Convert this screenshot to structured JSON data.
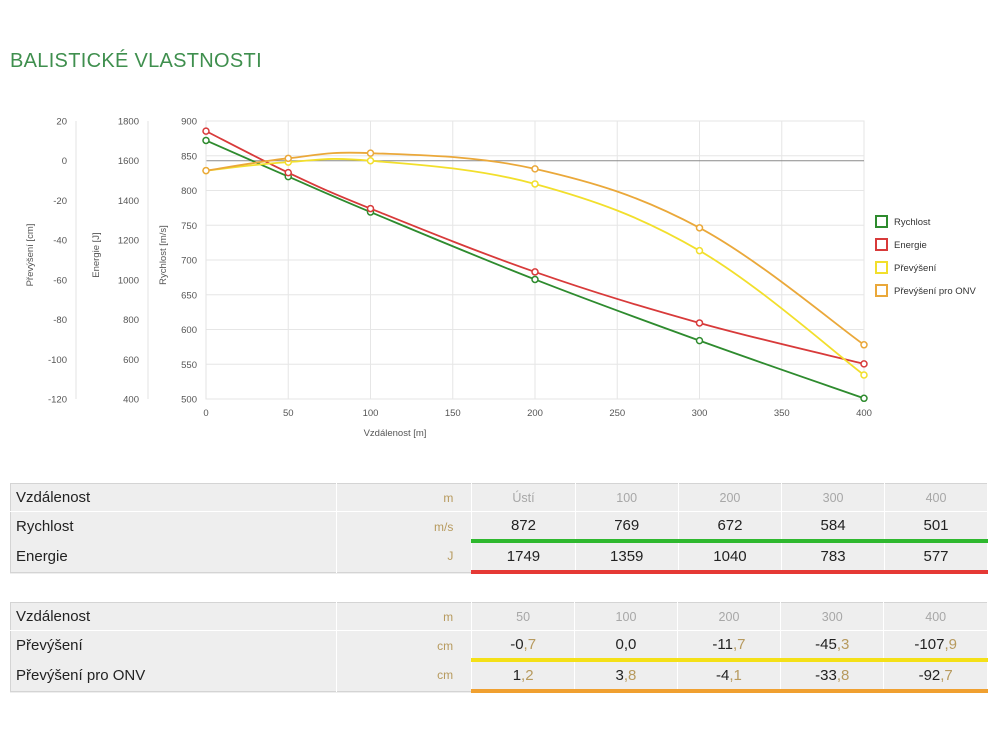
{
  "title": "BALISTICKÉ VLASTNOSTI",
  "chart_data": {
    "type": "line",
    "xlabel": "Vzdálenost [m]",
    "xlim": [
      0,
      400
    ],
    "xticks": [
      0,
      50,
      100,
      150,
      200,
      250,
      300,
      350,
      400
    ],
    "axes": [
      {
        "name": "Převýšení [cm]",
        "ylim": [
          -120,
          20
        ],
        "ticks": [
          20,
          0,
          -20,
          -40,
          -60,
          -80,
          -100,
          -120
        ]
      },
      {
        "name": "Energie [J]",
        "ylim": [
          400,
          1800
        ],
        "ticks": [
          1800,
          1600,
          1400,
          1200,
          1000,
          800,
          600,
          400
        ]
      },
      {
        "name": "Rychlost [m/s]",
        "ylim": [
          500,
          900
        ],
        "ticks": [
          900,
          850,
          800,
          750,
          700,
          650,
          600,
          550,
          500
        ]
      }
    ],
    "series": [
      {
        "name": "Rychlost",
        "axis": 2,
        "color": "#2e8b2e",
        "x": [
          0,
          50,
          100,
          200,
          300,
          400
        ],
        "values": [
          872,
          820,
          769,
          672,
          584,
          501
        ]
      },
      {
        "name": "Energie",
        "axis": 1,
        "color": "#d83a3a",
        "x": [
          0,
          50,
          100,
          200,
          300,
          400
        ],
        "values": [
          1749,
          1540,
          1359,
          1040,
          783,
          577
        ]
      },
      {
        "name": "Převýšení",
        "axis": 0,
        "color": "#f2df2c",
        "x": [
          0,
          50,
          100,
          200,
          300,
          400
        ],
        "values": [
          -5,
          -0.7,
          0.0,
          -11.7,
          -45.3,
          -107.9
        ]
      },
      {
        "name": "Převýšení pro ONV",
        "axis": 0,
        "color": "#eaa83a",
        "x": [
          0,
          50,
          100,
          200,
          300,
          400
        ],
        "values": [
          -5,
          1.2,
          3.8,
          -4.1,
          -33.8,
          -92.7
        ]
      }
    ]
  },
  "table1": {
    "header": {
      "label": "Vzdálenost",
      "unit": "m",
      "values": [
        "Ústí",
        "100",
        "200",
        "300",
        "400"
      ]
    },
    "rows": [
      {
        "label": "Rychlost",
        "unit": "m/s",
        "values": [
          "872",
          "769",
          "672",
          "584",
          "501"
        ]
      },
      {
        "label": "Energie",
        "unit": "J",
        "values": [
          "1749",
          "1359",
          "1040",
          "783",
          "577"
        ]
      }
    ]
  },
  "table2": {
    "header": {
      "label": "Vzdálenost",
      "unit": "m",
      "values": [
        "50",
        "100",
        "200",
        "300",
        "400"
      ]
    },
    "rows": [
      {
        "label": "Převýšení",
        "unit": "cm",
        "values": [
          [
            "-0",
            ",7"
          ],
          [
            "0",
            ",0"
          ],
          [
            "-11",
            ",7"
          ],
          [
            "-45",
            ",3"
          ],
          [
            "-107",
            ",9"
          ]
        ]
      },
      {
        "label": "Převýšení pro ONV",
        "unit": "cm",
        "values": [
          [
            "1",
            ",2"
          ],
          [
            "3",
            ",8"
          ],
          [
            "-4",
            ",1"
          ],
          [
            "-33",
            ",8"
          ],
          [
            "-92",
            ",7"
          ]
        ]
      }
    ]
  }
}
